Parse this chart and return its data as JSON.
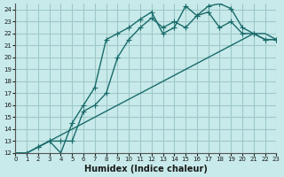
{
  "xlabel": "Humidex (Indice chaleur)",
  "bg_color": "#c8eaea",
  "grid_color": "#a0c8c8",
  "line_color": "#1a6b6b",
  "xlim": [
    0,
    23
  ],
  "ylim": [
    12,
    24.5
  ],
  "xticks": [
    0,
    1,
    2,
    3,
    4,
    5,
    6,
    7,
    8,
    9,
    10,
    11,
    12,
    13,
    14,
    15,
    16,
    17,
    18,
    19,
    20,
    21,
    22,
    23
  ],
  "yticks": [
    12,
    13,
    14,
    15,
    16,
    17,
    18,
    19,
    20,
    21,
    22,
    23,
    24
  ],
  "line1_x": [
    0,
    1,
    2,
    3,
    4,
    5,
    6,
    7,
    8,
    9,
    10,
    11,
    12,
    13,
    14,
    15,
    16,
    17,
    18,
    19,
    20,
    21,
    22,
    23
  ],
  "line1_y": [
    12,
    12,
    12.5,
    13,
    13.5,
    14,
    14.5,
    15,
    15.5,
    16,
    16.5,
    17,
    17.5,
    18,
    18.5,
    19,
    19.5,
    20,
    20.5,
    21,
    21.5,
    22,
    22,
    21.5
  ],
  "line2_x": [
    0,
    1,
    2,
    3,
    4,
    5,
    6,
    7,
    8,
    9,
    10,
    11,
    12,
    13,
    14,
    15,
    16,
    17,
    18,
    19,
    20,
    21,
    22,
    23
  ],
  "line2_y": [
    12,
    12,
    12.5,
    13,
    12,
    14.5,
    16,
    17.5,
    21.5,
    22,
    22.5,
    23.2,
    23.8,
    22,
    22.5,
    24.3,
    23.5,
    24.3,
    24.5,
    24.1,
    22.5,
    22,
    21.5,
    21.5
  ],
  "line3_x": [
    2,
    3,
    4,
    5,
    6,
    7,
    8,
    9,
    10,
    11,
    12,
    13,
    14,
    15,
    16,
    17,
    18,
    19,
    20,
    21,
    22,
    23
  ],
  "line3_y": [
    12.5,
    13,
    13,
    13,
    15.5,
    16,
    17,
    20,
    21.5,
    22.5,
    23.3,
    22.5,
    23,
    22.5,
    23.5,
    23.8,
    22.5,
    23.0,
    22.0,
    22,
    21.5,
    21.5
  ]
}
